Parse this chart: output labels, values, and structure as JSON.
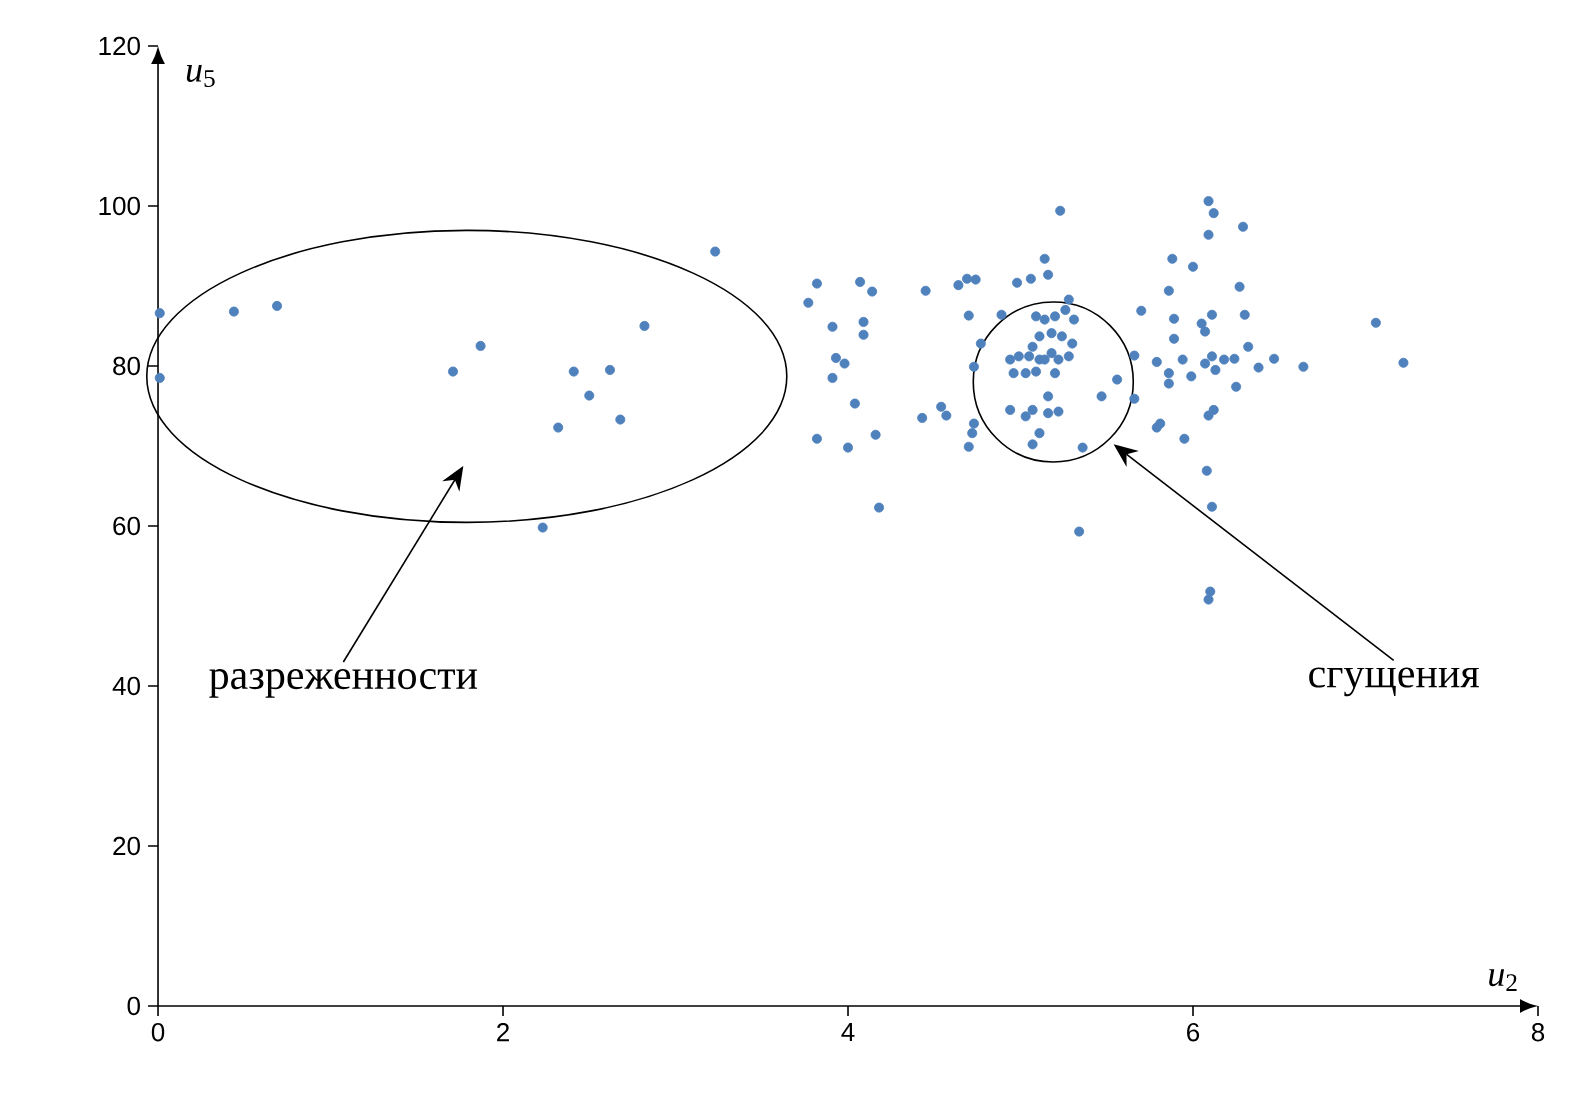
{
  "chart_data": {
    "type": "scatter",
    "xlabel": "*u*$_{2}$",
    "ylabel": "*u*$_{5}$",
    "xlim": [
      0,
      8
    ],
    "ylim": [
      0,
      120
    ],
    "xticks": [
      0,
      2,
      4,
      6,
      8
    ],
    "yticks": [
      0,
      20,
      40,
      60,
      80,
      100,
      120
    ],
    "marker": "circle",
    "grid": false,
    "annotations": [
      "разреженности",
      "сгущения"
    ],
    "series": [
      {
        "color": "#4f81bd",
        "x": [
          0.01,
          0.01,
          0.44,
          0.69,
          1.71,
          1.87,
          2.41,
          2.5,
          2.62,
          2.32,
          2.68,
          2.82,
          2.23,
          3.23,
          5.23,
          3.82,
          3.77,
          4.07,
          4.14,
          3.91,
          4.09,
          4.09,
          3.93,
          3.98,
          3.91,
          4.04,
          3.82,
          4.0,
          4.16,
          4.18,
          4.45,
          4.64,
          4.69,
          4.74,
          4.7,
          4.43,
          4.54,
          4.57,
          4.73,
          4.72,
          4.7,
          4.98,
          5.06,
          5.14,
          5.16,
          5.34,
          5.36,
          5.07,
          4.73,
          4.77,
          4.89,
          4.94,
          4.99,
          5.05,
          5.11,
          4.96,
          5.03,
          5.09,
          5.14,
          5.18,
          5.22,
          5.28,
          5.3,
          5.24,
          5.14,
          5.09,
          5.2,
          5.26,
          5.28,
          5.31,
          5.18,
          5.11,
          5.2,
          5.07,
          4.94,
          5.03,
          5.07,
          5.16,
          5.16,
          5.22,
          5.11,
          5.47,
          5.56,
          6.09,
          6.12,
          6.09,
          6.29,
          5.88,
          6.0,
          5.86,
          6.27,
          5.7,
          5.89,
          6.05,
          6.11,
          6.07,
          6.3,
          7.06,
          5.66,
          5.89,
          6.32,
          5.79,
          5.86,
          5.94,
          5.99,
          5.86,
          6.11,
          6.18,
          6.24,
          6.13,
          6.07,
          6.38,
          6.47,
          6.64,
          7.22,
          5.66,
          6.25,
          6.12,
          6.09,
          5.81,
          5.79,
          5.95,
          6.08,
          6.11,
          6.1,
          6.09
        ],
        "values": [
          86.6,
          78.5,
          86.8,
          87.5,
          79.3,
          82.5,
          79.3,
          76.3,
          79.5,
          72.3,
          73.3,
          85.0,
          59.8,
          94.3,
          99.4,
          90.3,
          87.9,
          90.5,
          89.3,
          84.9,
          85.5,
          83.9,
          81.0,
          80.3,
          78.5,
          75.3,
          70.9,
          69.8,
          71.4,
          62.3,
          89.4,
          90.1,
          90.9,
          90.8,
          86.3,
          73.5,
          74.9,
          73.8,
          72.8,
          71.6,
          69.9,
          90.4,
          90.9,
          93.4,
          91.4,
          59.3,
          69.8,
          70.2,
          79.9,
          82.8,
          86.4,
          80.8,
          81.2,
          81.2,
          80.8,
          79.1,
          79.1,
          79.3,
          80.8,
          81.6,
          80.8,
          81.2,
          82.8,
          83.7,
          85.8,
          86.2,
          86.2,
          87.0,
          88.3,
          85.8,
          84.1,
          83.7,
          79.1,
          82.4,
          74.5,
          73.7,
          74.5,
          76.2,
          74.1,
          74.3,
          71.6,
          76.2,
          78.3,
          100.6,
          99.1,
          96.4,
          97.4,
          93.4,
          92.4,
          89.4,
          89.9,
          86.9,
          85.9,
          85.3,
          86.4,
          84.3,
          86.4,
          85.4,
          81.3,
          83.4,
          82.4,
          80.5,
          79.1,
          80.8,
          78.7,
          77.8,
          81.2,
          80.8,
          80.9,
          79.5,
          80.3,
          79.8,
          80.9,
          79.9,
          80.4,
          75.9,
          77.4,
          74.5,
          73.8,
          72.8,
          72.3,
          70.9,
          66.9,
          62.4,
          51.8,
          50.8
        ]
      }
    ]
  }
}
